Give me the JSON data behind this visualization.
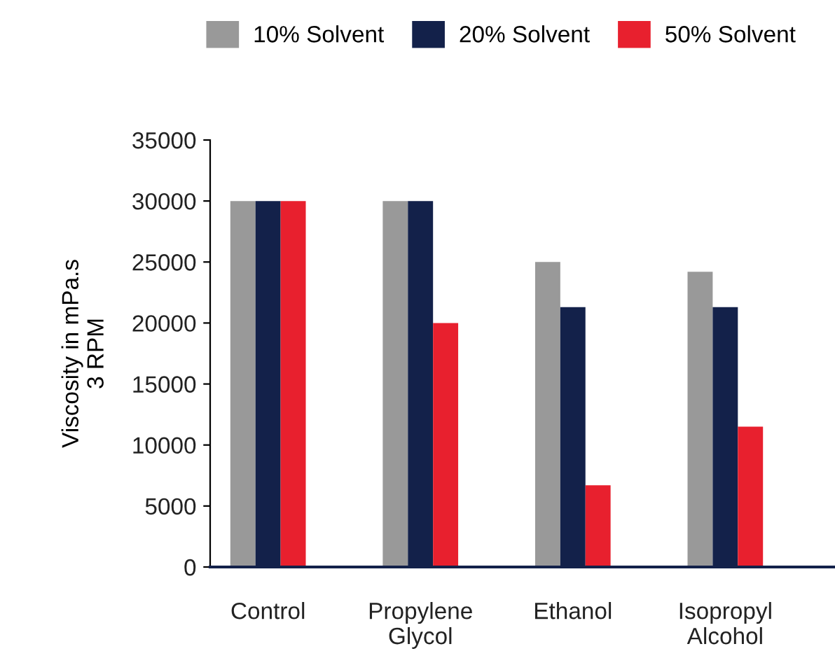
{
  "chart_data": {
    "type": "bar",
    "ylabel": "Viscosity in mPa.s\n3 RPM",
    "categories": [
      "Control",
      "Propylene\nGlycol",
      "Ethanol",
      "Isopropyl\nAlcohol"
    ],
    "series": [
      {
        "name": "10% Solvent",
        "color": "#999999",
        "values": [
          30000,
          30000,
          25000,
          24200
        ]
      },
      {
        "name": "20% Solvent",
        "color": "#13214a",
        "values": [
          30000,
          30000,
          21300,
          21300
        ]
      },
      {
        "name": "50% Solvent",
        "color": "#e8202e",
        "values": [
          30000,
          20000,
          6700,
          11500
        ]
      }
    ],
    "ylim": [
      0,
      35000
    ],
    "yticks": [
      0,
      5000,
      10000,
      15000,
      20000,
      25000,
      30000,
      35000
    ],
    "grid": false,
    "legend": "top"
  }
}
